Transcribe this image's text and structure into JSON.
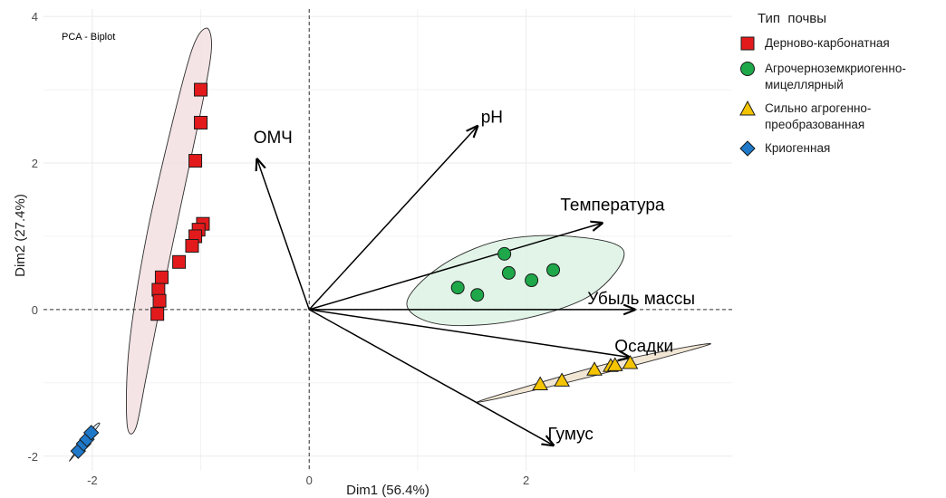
{
  "chart_data": {
    "type": "scatter",
    "title": "PCA - Biplot",
    "xlabel": "Dim1 (56.4%)",
    "ylabel": "Dim2 (27.4%)",
    "xlim": [
      -2.45,
      3.9
    ],
    "ylim": [
      -2.2,
      4.1
    ],
    "xticks": [
      -2,
      0,
      2
    ],
    "yticks": [
      -2,
      0,
      2,
      4
    ],
    "grid": true,
    "reference_lines": {
      "x": 0,
      "y": 0,
      "style": "dashed"
    },
    "legend_title": "Тип  почвы",
    "legend_position": "right",
    "series": [
      {
        "name": "Дерново-карбонатная",
        "shape": "square",
        "color": "#e31a1c",
        "ellipse_fill": "#f2dfe2",
        "points": [
          {
            "x": -1.0,
            "y": 3.0
          },
          {
            "x": -1.0,
            "y": 2.55
          },
          {
            "x": -1.05,
            "y": 2.03
          },
          {
            "x": -0.98,
            "y": 1.17
          },
          {
            "x": -1.02,
            "y": 1.09
          },
          {
            "x": -1.05,
            "y": 1.0
          },
          {
            "x": -1.08,
            "y": 0.87
          },
          {
            "x": -1.2,
            "y": 0.65
          },
          {
            "x": -1.36,
            "y": 0.44
          },
          {
            "x": -1.39,
            "y": 0.27
          },
          {
            "x": -1.38,
            "y": 0.12
          },
          {
            "x": -1.4,
            "y": -0.06
          }
        ],
        "ellipse_outline": [
          [
            -0.95,
            3.84
          ],
          [
            -0.9,
            3.6
          ],
          [
            -0.96,
            3.0
          ],
          [
            -1.1,
            2.0
          ],
          [
            -1.3,
            0.6
          ],
          [
            -1.5,
            -0.9
          ],
          [
            -1.6,
            -1.62
          ],
          [
            -1.68,
            -1.55
          ],
          [
            -1.66,
            -0.5
          ],
          [
            -1.5,
            1.0
          ],
          [
            -1.27,
            2.5
          ],
          [
            -1.08,
            3.55
          ]
        ]
      },
      {
        "name": "Агрочерноземкриогенно-мицеллярный",
        "shape": "circle",
        "color": "#1ea84a",
        "ellipse_fill": "#dcf2e3",
        "points": [
          {
            "x": 1.37,
            "y": 0.3
          },
          {
            "x": 1.55,
            "y": 0.2
          },
          {
            "x": 1.8,
            "y": 0.76
          },
          {
            "x": 1.84,
            "y": 0.5
          },
          {
            "x": 2.05,
            "y": 0.4
          },
          {
            "x": 2.25,
            "y": 0.54
          }
        ],
        "ellipse_outline": [
          [
            0.9,
            0.08
          ],
          [
            1.2,
            0.58
          ],
          [
            1.75,
            0.94
          ],
          [
            2.4,
            1.0
          ],
          [
            2.9,
            0.8
          ],
          [
            2.6,
            0.2
          ],
          [
            1.9,
            -0.15
          ],
          [
            1.2,
            -0.2
          ]
        ]
      },
      {
        "name": "Сильно агрогенно-преобразованная",
        "shape": "triangle",
        "color": "#f5c400",
        "ellipse_fill": "#efe2cc",
        "points": [
          {
            "x": 2.13,
            "y": -1.02
          },
          {
            "x": 2.33,
            "y": -0.97
          },
          {
            "x": 2.63,
            "y": -0.82
          },
          {
            "x": 2.78,
            "y": -0.77
          },
          {
            "x": 2.82,
            "y": -0.76
          },
          {
            "x": 2.96,
            "y": -0.73
          }
        ],
        "ellipse_outline": [
          [
            1.55,
            -1.26
          ],
          [
            2.5,
            -0.95
          ],
          [
            3.7,
            -0.47
          ],
          [
            2.8,
            -0.72
          ]
        ]
      },
      {
        "name": "Криогенная",
        "shape": "diamond",
        "color": "#1f78c8",
        "ellipse_fill": "#cfe3f2",
        "points": [
          {
            "x": -2.13,
            "y": -1.93
          },
          {
            "x": -2.08,
            "y": -1.83
          },
          {
            "x": -2.05,
            "y": -1.77
          },
          {
            "x": -2.01,
            "y": -1.68
          }
        ],
        "ellipse_outline": [
          [
            -2.2,
            -2.04
          ],
          [
            -2.0,
            -1.62
          ],
          [
            -1.94,
            -1.58
          ],
          [
            -2.16,
            -1.98
          ]
        ]
      }
    ],
    "vectors": [
      {
        "name": "ОМЧ",
        "x": -0.48,
        "y": 2.05
      },
      {
        "name": "pH",
        "x": 1.55,
        "y": 2.5
      },
      {
        "name": "Температура",
        "x": 2.7,
        "y": 1.18
      },
      {
        "name": "Убыль  массы",
        "x": 3.0,
        "y": 0.0
      },
      {
        "name": "Осадки",
        "x": 2.95,
        "y": -0.65
      },
      {
        "name": "Гумус",
        "x": 2.25,
        "y": -1.85
      }
    ]
  }
}
